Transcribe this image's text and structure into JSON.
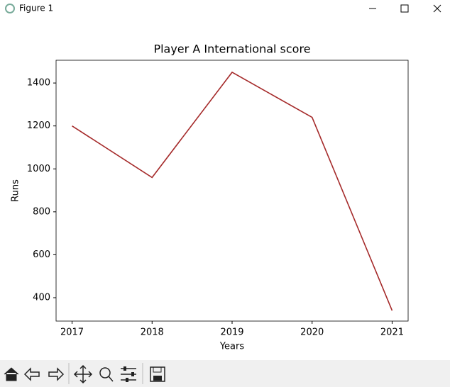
{
  "window_title": "Figure 1",
  "chart_data": {
    "type": "line",
    "title": "Player A International score",
    "x_label": "Years",
    "y_label": "Runs",
    "x": [
      2017,
      2018,
      2019,
      2020,
      2021
    ],
    "series": [
      {
        "color": "#a52a2a",
        "values": [
          1200,
          960,
          1450,
          1240,
          340
        ]
      }
    ],
    "xlim": [
      2016.8,
      2021.2
    ],
    "ylim": [
      291,
      1506
    ],
    "xticks": [
      2017,
      2018,
      2019,
      2020,
      2021
    ],
    "yticks": [
      400,
      600,
      800,
      1000,
      1200,
      1400
    ],
    "grid": false
  }
}
